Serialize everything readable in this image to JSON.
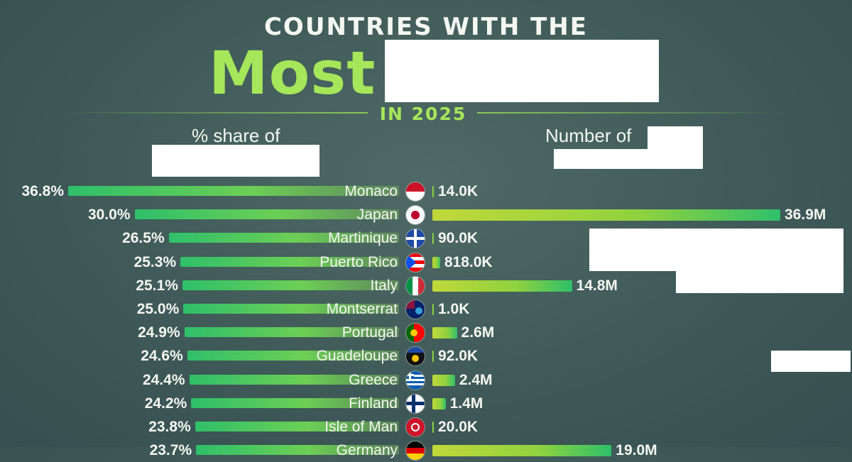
{
  "header": {
    "line1": "COUNTRIES WITH THE",
    "line2": "Most",
    "subtitle": "IN 2025"
  },
  "columns": {
    "left_heading": "% share of",
    "right_heading": "Number of"
  },
  "colors": {
    "accent": "#a6e65a",
    "pct_bar": "#2fbf6a",
    "num_bar": "#c0d83a",
    "background": "#4a6462"
  },
  "chart_data": [
    {
      "type": "bar",
      "orientation": "horizontal",
      "categories": [
        "Monaco",
        "Japan",
        "Martinique",
        "Puerto Rico",
        "Italy",
        "Montserrat",
        "Portugal",
        "Guadeloupe",
        "Greece",
        "Finland",
        "Isle of Man",
        "Germany"
      ],
      "values": [
        36.8,
        30.0,
        26.5,
        25.3,
        25.1,
        25.0,
        24.9,
        24.6,
        24.4,
        24.2,
        23.8,
        23.7
      ],
      "labels": [
        "36.8%",
        "30.0%",
        "26.5%",
        "25.3%",
        "25.1%",
        "25.0%",
        "24.9%",
        "24.6%",
        "24.4%",
        "24.2%",
        "23.8%",
        "23.7%"
      ],
      "xlim": [
        0,
        36.8
      ]
    },
    {
      "type": "bar",
      "orientation": "horizontal",
      "categories": [
        "Monaco",
        "Japan",
        "Martinique",
        "Puerto Rico",
        "Italy",
        "Montserrat",
        "Portugal",
        "Guadeloupe",
        "Greece",
        "Finland",
        "Isle of Man",
        "Germany"
      ],
      "values": [
        14000,
        36900000,
        90000,
        818000,
        14800000,
        1000,
        2600000,
        92000,
        2400000,
        1400000,
        20000,
        19000000
      ],
      "labels": [
        "14.0K",
        "36.9M",
        "90.0K",
        "818.0K",
        "14.8M",
        "1.0K",
        "2.6M",
        "92.0K",
        "2.4M",
        "1.4M",
        "20.0K",
        "19.0M"
      ],
      "xlim": [
        0,
        36900000
      ]
    }
  ],
  "flags": [
    "monaco-flag-icon",
    "japan-flag-icon",
    "martinique-flag-icon",
    "puerto-rico-flag-icon",
    "italy-flag-icon",
    "montserrat-flag-icon",
    "portugal-flag-icon",
    "guadeloupe-flag-icon",
    "greece-flag-icon",
    "finland-flag-icon",
    "isle-of-man-flag-icon",
    "germany-flag-icon"
  ]
}
